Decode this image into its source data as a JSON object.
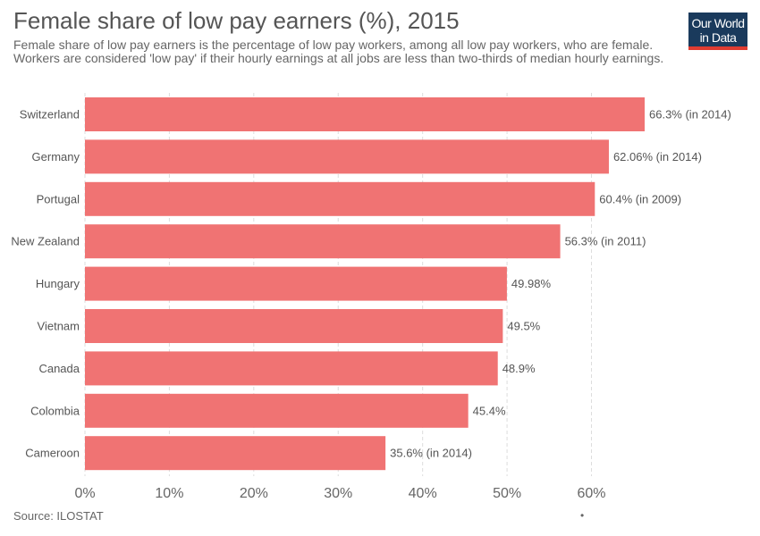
{
  "header": {
    "title": "Female share of low pay earners (%), 2015",
    "subtitle": "Female share of low pay earners is the percentage of low pay workers, among all low pay workers, who are female. Workers are considered 'low pay' if their hourly earnings at all jobs are less than two-thirds of median hourly earnings."
  },
  "logo": {
    "line1": "Our World",
    "line2": "in Data"
  },
  "footer": {
    "source": "Source: ILOSTAT",
    "dot": "•"
  },
  "colors": {
    "bar": "#f07373",
    "grid": "#dddddd",
    "text": "#555555"
  },
  "chart_data": {
    "type": "bar",
    "orientation": "horizontal",
    "title": "Female share of low pay earners (%), 2015",
    "categories": [
      "Switzerland",
      "Germany",
      "Portugal",
      "New Zealand",
      "Hungary",
      "Vietnam",
      "Canada",
      "Colombia",
      "Cameroon"
    ],
    "values": [
      66.3,
      62.06,
      60.4,
      56.3,
      49.98,
      49.5,
      48.9,
      45.4,
      35.6
    ],
    "value_labels": [
      "66.3% (in 2014)",
      "62.06% (in 2014)",
      "60.4% (in 2009)",
      "56.3% (in 2011)",
      "49.98%",
      "49.5%",
      "48.9%",
      "45.4%",
      "35.6% (in 2014)"
    ],
    "xlim": [
      0,
      66.3
    ],
    "xticks": [
      0,
      10,
      20,
      30,
      40,
      50,
      60
    ],
    "xtick_labels": [
      "0%",
      "10%",
      "20%",
      "30%",
      "40%",
      "50%",
      "60%"
    ],
    "xlabel": "",
    "ylabel": "",
    "grid": "vertical dashed",
    "legend": "none"
  }
}
